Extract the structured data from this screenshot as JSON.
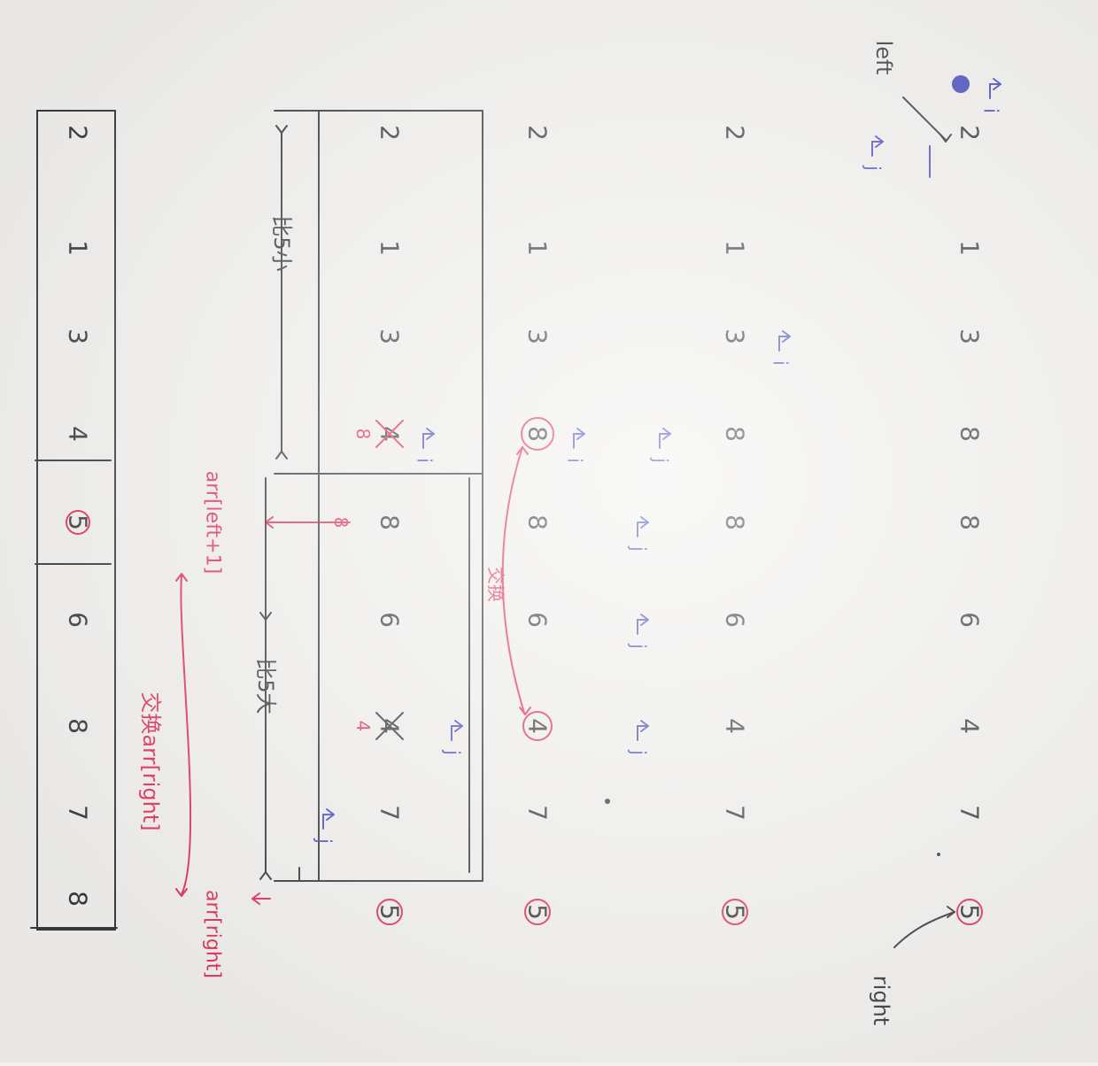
{
  "palette": {
    "paper": "#f2f1ef",
    "ink": "#3a3a3a",
    "pen_red": "#e0325a",
    "pen_blue": "#4a4fc0"
  },
  "array_top": [
    "8",
    "7",
    "8",
    "6",
    "5",
    "4",
    "3",
    "1",
    "2"
  ],
  "rows": [
    [
      "5",
      "7",
      "4",
      "6",
      "8",
      "4",
      "3",
      "1",
      "2"
    ],
    [
      "5",
      "7",
      "4",
      "6",
      "8",
      "8",
      "3",
      "1",
      "2"
    ],
    [
      "5",
      "7",
      "4",
      "6",
      "8",
      "8",
      "3",
      "1",
      "2"
    ],
    [
      "5",
      "7",
      "4",
      "6",
      "8",
      "8",
      "3",
      "1",
      "2"
    ]
  ],
  "labels": {
    "left": "left",
    "right": "right",
    "i": "i",
    "j": "j",
    "group_big": "比5大",
    "group_small": "比5小",
    "swap": "交换",
    "arr_left_plus": "arr[left+1]",
    "arr_right": "arr[right]",
    "swap_arr_right": "交换arr[right]",
    "small_lbl": "8"
  }
}
